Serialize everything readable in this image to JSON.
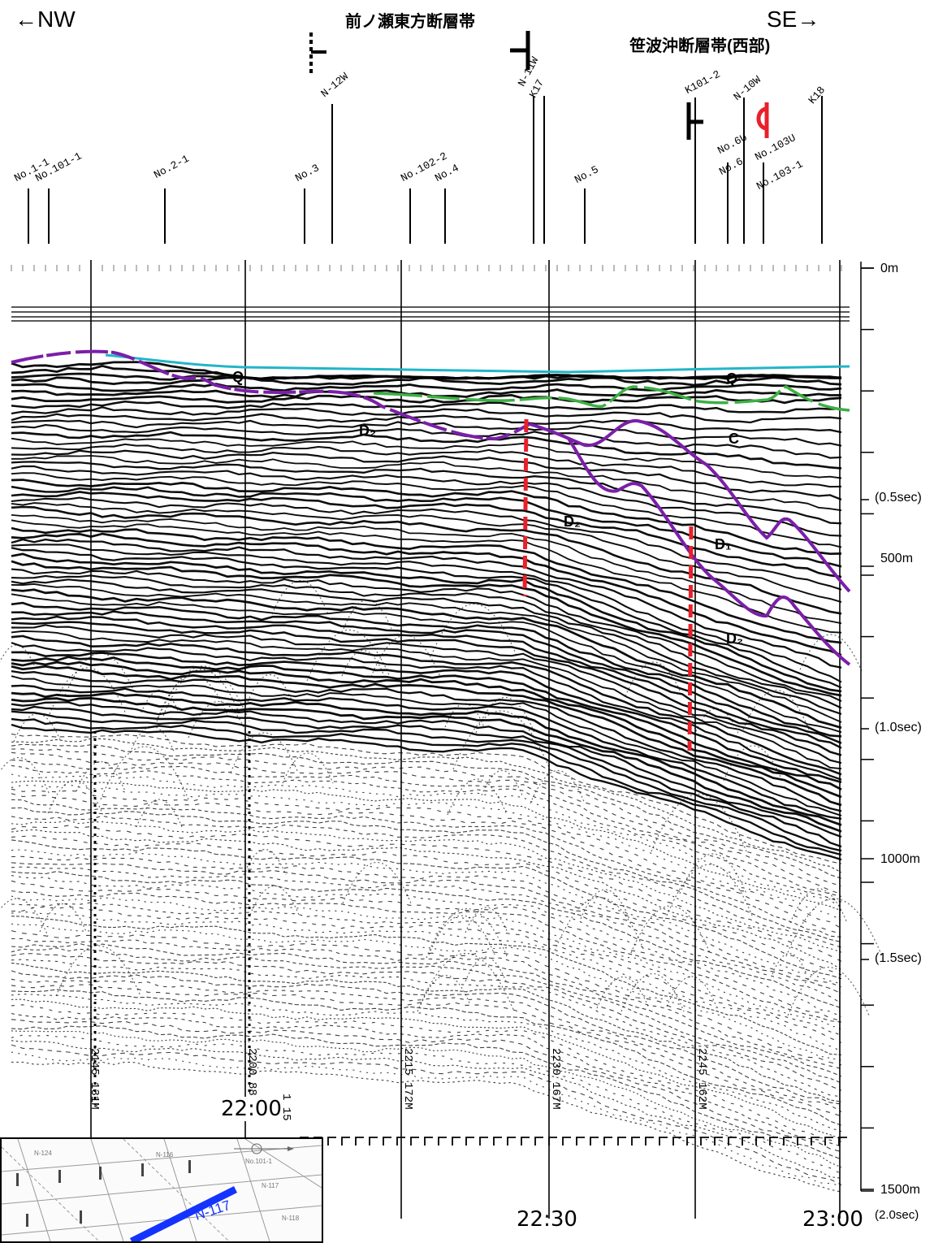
{
  "header": {
    "nw": "←NW",
    "se": "SE→",
    "fault1": "前ノ瀬東方断層帯",
    "fault2": "笹波沖断層帯(西部)"
  },
  "stations": [
    {
      "text": "No.1-1"
    },
    {
      "text": "No.101-1"
    },
    {
      "text": "No.2-1"
    },
    {
      "text": "No.3"
    },
    {
      "text": "N-12W"
    },
    {
      "text": "No.102-2"
    },
    {
      "text": "No.4"
    },
    {
      "text": "N-11W"
    },
    {
      "text": "K17"
    },
    {
      "text": "No.5"
    },
    {
      "text": "K101-2"
    },
    {
      "text": "No.6U"
    },
    {
      "text": "N-10W"
    },
    {
      "text": "No.6"
    },
    {
      "text": "No.103U"
    },
    {
      "text": "No.103-1"
    },
    {
      "text": "K18"
    }
  ],
  "units": {
    "q1": "Q",
    "q2": "Q",
    "c": "C",
    "d2a": "D₂",
    "d2b": "D₂",
    "d1": "D₁",
    "d2c": "D₂"
  },
  "depth_scale": {
    "m0": "0m",
    "s05": "(0.5sec)",
    "m500": "500m",
    "s10": "(1.0sec)",
    "m1000": "1000m",
    "s15": "(1.5sec)",
    "m1500": "1500m",
    "s20": "(2.0sec)"
  },
  "times": {
    "t1": "22:00",
    "t2": "22:30",
    "t3": "23:00"
  },
  "record_labels": [
    "2145 131M",
    "2200 88",
    "2215 172M",
    "2230 167M",
    "2245 162M",
    "1 15"
  ],
  "inset": {
    "line_label": "N-117"
  },
  "colors": {
    "fault_red": "#e8202a",
    "horizon_purple": "#7a1fa8",
    "seafloor_cyan": "#22b5c9",
    "green": "#3cb043",
    "line_blue": "#1433ff"
  }
}
